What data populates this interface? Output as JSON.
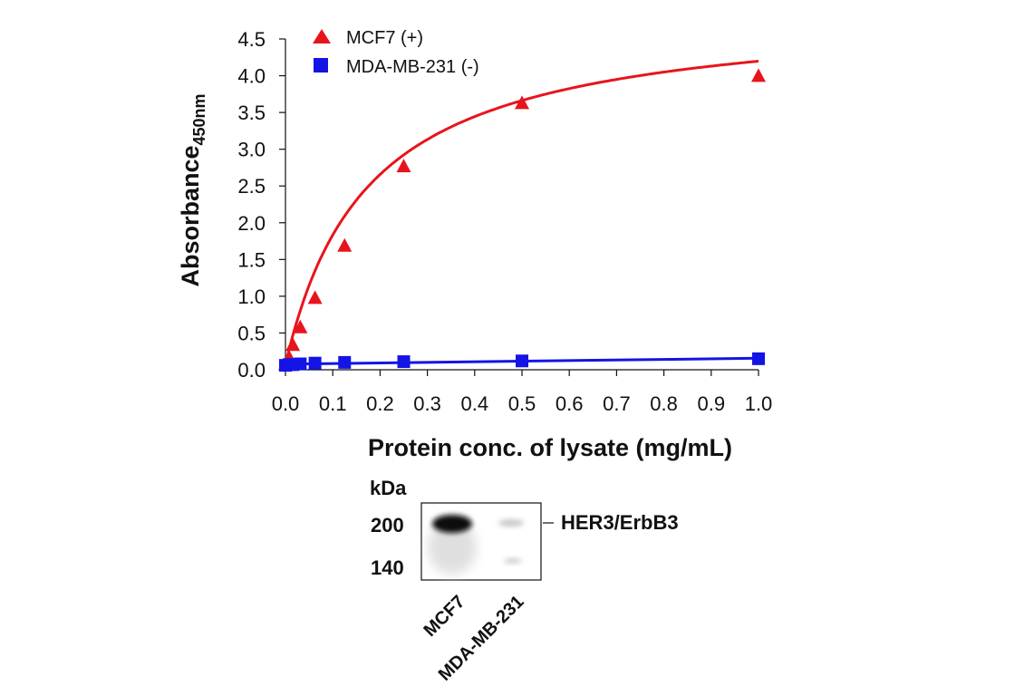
{
  "chart_data": {
    "type": "scatter",
    "xlabel": "Protein conc. of lysate (mg/mL)",
    "ylabel": "Absorbance",
    "ylabel_subscript": "450nm",
    "xlim": [
      0,
      1.0
    ],
    "ylim": [
      0,
      4.5
    ],
    "x_ticks": [
      "0.0",
      "0.1",
      "0.2",
      "0.3",
      "0.4",
      "0.5",
      "0.6",
      "0.7",
      "0.8",
      "0.9",
      "1.0"
    ],
    "y_ticks": [
      "0.0",
      "0.5",
      "1.0",
      "1.5",
      "2.0",
      "2.5",
      "3.0",
      "3.5",
      "4.0",
      "4.5"
    ],
    "legend_position": "top-left",
    "series": [
      {
        "name": "MCF7 (+)",
        "marker": "triangle",
        "color": "#e8141c",
        "x": [
          0.0,
          0.0078,
          0.0156,
          0.0313,
          0.0625,
          0.125,
          0.25,
          0.5,
          1.0
        ],
        "y": [
          0.07,
          0.16,
          0.33,
          0.57,
          0.97,
          1.68,
          2.76,
          3.62,
          3.99
        ],
        "fit": "curve"
      },
      {
        "name": "MDA-MB-231 (-)",
        "marker": "square",
        "color": "#1414e6",
        "x": [
          0.0,
          0.0078,
          0.0156,
          0.0313,
          0.0625,
          0.125,
          0.25,
          0.5,
          1.0
        ],
        "y": [
          0.06,
          0.07,
          0.07,
          0.08,
          0.09,
          0.1,
          0.11,
          0.12,
          0.15
        ],
        "fit": "line"
      }
    ]
  },
  "blot": {
    "unit_label": "kDa",
    "markers": [
      "200",
      "140"
    ],
    "band_label": "HER3/ErbB3",
    "lanes": [
      "MCF7",
      "MDA-MB-231"
    ]
  }
}
